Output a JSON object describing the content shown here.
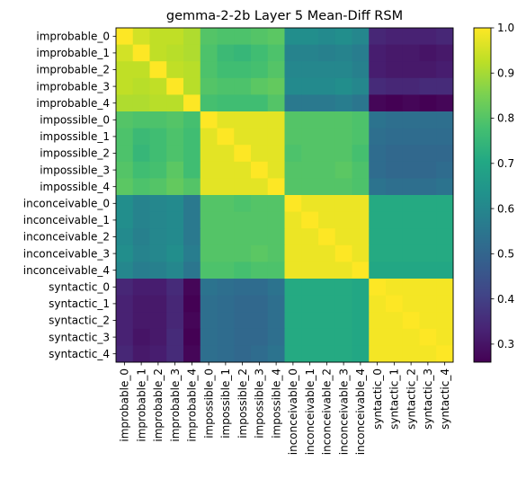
{
  "chart_data": {
    "type": "heatmap",
    "title": "gemma-2-2b Layer 5 Mean-Diff RSM",
    "labels": [
      "improbable_0",
      "improbable_1",
      "improbable_2",
      "improbable_3",
      "improbable_4",
      "impossible_0",
      "impossible_1",
      "impossible_2",
      "impossible_3",
      "impossible_4",
      "inconceivable_0",
      "inconceivable_1",
      "inconceivable_2",
      "inconceivable_3",
      "inconceivable_4",
      "syntactic_0",
      "syntactic_1",
      "syntactic_2",
      "syntactic_3",
      "syntactic_4"
    ],
    "values": [
      [
        1.0,
        0.95,
        0.93,
        0.93,
        0.91,
        0.8,
        0.79,
        0.79,
        0.8,
        0.81,
        0.62,
        0.62,
        0.61,
        0.62,
        0.6,
        0.34,
        0.33,
        0.33,
        0.33,
        0.34
      ],
      [
        0.95,
        1.0,
        0.93,
        0.92,
        0.91,
        0.79,
        0.76,
        0.75,
        0.77,
        0.79,
        0.59,
        0.59,
        0.58,
        0.59,
        0.57,
        0.32,
        0.31,
        0.31,
        0.3,
        0.31
      ],
      [
        0.93,
        0.93,
        1.0,
        0.93,
        0.92,
        0.79,
        0.77,
        0.77,
        0.78,
        0.8,
        0.6,
        0.6,
        0.6,
        0.6,
        0.58,
        0.32,
        0.31,
        0.31,
        0.31,
        0.32
      ],
      [
        0.93,
        0.92,
        0.93,
        1.0,
        0.92,
        0.8,
        0.79,
        0.79,
        0.81,
        0.82,
        0.61,
        0.61,
        0.61,
        0.62,
        0.6,
        0.35,
        0.34,
        0.34,
        0.35,
        0.35
      ],
      [
        0.91,
        0.91,
        0.92,
        0.92,
        1.0,
        0.78,
        0.77,
        0.77,
        0.77,
        0.8,
        0.56,
        0.56,
        0.56,
        0.57,
        0.55,
        0.27,
        0.26,
        0.27,
        0.26,
        0.27
      ],
      [
        0.8,
        0.79,
        0.79,
        0.8,
        0.78,
        1.0,
        0.97,
        0.97,
        0.97,
        0.97,
        0.8,
        0.8,
        0.8,
        0.8,
        0.79,
        0.54,
        0.53,
        0.53,
        0.53,
        0.53
      ],
      [
        0.79,
        0.76,
        0.77,
        0.79,
        0.77,
        0.97,
        1.0,
        0.97,
        0.97,
        0.97,
        0.8,
        0.8,
        0.8,
        0.8,
        0.79,
        0.53,
        0.52,
        0.52,
        0.52,
        0.52
      ],
      [
        0.79,
        0.75,
        0.77,
        0.79,
        0.77,
        0.97,
        0.97,
        1.0,
        0.97,
        0.97,
        0.79,
        0.8,
        0.8,
        0.8,
        0.78,
        0.52,
        0.51,
        0.51,
        0.51,
        0.51
      ],
      [
        0.8,
        0.77,
        0.78,
        0.81,
        0.77,
        0.97,
        0.97,
        0.97,
        1.0,
        0.97,
        0.8,
        0.8,
        0.8,
        0.81,
        0.79,
        0.52,
        0.51,
        0.51,
        0.51,
        0.52
      ],
      [
        0.81,
        0.79,
        0.8,
        0.82,
        0.8,
        0.97,
        0.97,
        0.97,
        0.97,
        1.0,
        0.8,
        0.8,
        0.8,
        0.8,
        0.79,
        0.54,
        0.53,
        0.53,
        0.53,
        0.54
      ],
      [
        0.62,
        0.59,
        0.6,
        0.61,
        0.56,
        0.8,
        0.8,
        0.79,
        0.8,
        0.8,
        1.0,
        0.98,
        0.98,
        0.98,
        0.98,
        0.71,
        0.71,
        0.71,
        0.71,
        0.71
      ],
      [
        0.62,
        0.59,
        0.6,
        0.61,
        0.56,
        0.8,
        0.8,
        0.8,
        0.8,
        0.8,
        0.98,
        1.0,
        0.98,
        0.98,
        0.98,
        0.71,
        0.71,
        0.71,
        0.71,
        0.71
      ],
      [
        0.61,
        0.58,
        0.6,
        0.61,
        0.56,
        0.8,
        0.8,
        0.8,
        0.8,
        0.8,
        0.98,
        0.98,
        1.0,
        0.98,
        0.98,
        0.71,
        0.71,
        0.71,
        0.71,
        0.71
      ],
      [
        0.62,
        0.59,
        0.6,
        0.62,
        0.57,
        0.8,
        0.8,
        0.8,
        0.81,
        0.8,
        0.98,
        0.98,
        0.98,
        1.0,
        0.98,
        0.71,
        0.71,
        0.71,
        0.71,
        0.71
      ],
      [
        0.6,
        0.57,
        0.58,
        0.6,
        0.55,
        0.79,
        0.79,
        0.78,
        0.79,
        0.79,
        0.98,
        0.98,
        0.98,
        0.98,
        1.0,
        0.7,
        0.7,
        0.7,
        0.7,
        0.7
      ],
      [
        0.34,
        0.32,
        0.32,
        0.35,
        0.27,
        0.54,
        0.53,
        0.52,
        0.52,
        0.54,
        0.71,
        0.71,
        0.71,
        0.71,
        0.7,
        1.0,
        0.99,
        0.99,
        0.99,
        0.99
      ],
      [
        0.33,
        0.31,
        0.31,
        0.34,
        0.26,
        0.53,
        0.52,
        0.51,
        0.51,
        0.53,
        0.71,
        0.71,
        0.71,
        0.71,
        0.7,
        0.99,
        1.0,
        0.99,
        0.99,
        0.99
      ],
      [
        0.33,
        0.31,
        0.31,
        0.34,
        0.27,
        0.53,
        0.52,
        0.51,
        0.51,
        0.53,
        0.71,
        0.71,
        0.71,
        0.71,
        0.7,
        0.99,
        0.99,
        1.0,
        0.99,
        0.99
      ],
      [
        0.33,
        0.3,
        0.31,
        0.35,
        0.26,
        0.53,
        0.52,
        0.51,
        0.51,
        0.53,
        0.71,
        0.71,
        0.71,
        0.71,
        0.7,
        0.99,
        0.99,
        0.99,
        1.0,
        0.99
      ],
      [
        0.34,
        0.31,
        0.32,
        0.35,
        0.27,
        0.53,
        0.52,
        0.51,
        0.52,
        0.54,
        0.71,
        0.71,
        0.71,
        0.71,
        0.7,
        0.99,
        0.99,
        0.99,
        0.99,
        1.0
      ]
    ],
    "vmin": 0.26,
    "vmax": 1.0,
    "colormap": "viridis",
    "colorbar_ticks": [
      "0.3",
      "0.4",
      "0.5",
      "0.6",
      "0.7",
      "0.8",
      "0.9",
      "1.0"
    ],
    "colorbar_tick_values": [
      0.3,
      0.4,
      0.5,
      0.6,
      0.7,
      0.8,
      0.9,
      1.0
    ],
    "grid": false
  }
}
